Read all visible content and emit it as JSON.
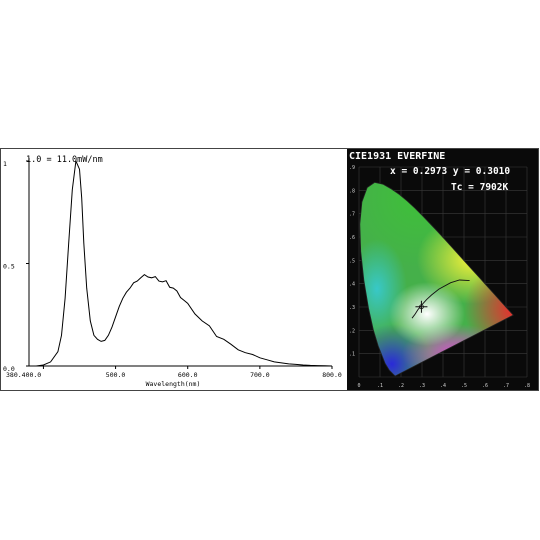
{
  "chart_data": [
    {
      "type": "line",
      "annotation": "1.0 = 11.0mW/nm",
      "xlabel": "Wavelength(nm)",
      "ylabel": "",
      "x_ticks": [
        "380.400.0",
        "500.0",
        "600.0",
        "700.0",
        "800.0"
      ],
      "y_ticks": [
        "1",
        "0.5",
        "0.0"
      ],
      "xlim": [
        380,
        800
      ],
      "ylim": [
        0,
        1
      ],
      "grid": false,
      "series": [
        {
          "x": [
            380,
            390,
            400,
            410,
            420,
            425,
            430,
            435,
            440,
            445,
            450,
            453,
            456,
            460,
            465,
            470,
            475,
            480,
            485,
            490,
            495,
            500,
            505,
            510,
            515,
            520,
            525,
            530,
            535,
            540,
            545,
            550,
            555,
            560,
            565,
            570,
            575,
            580,
            585,
            590,
            595,
            600,
            610,
            620,
            630,
            640,
            650,
            660,
            670,
            680,
            690,
            700,
            710,
            720,
            730,
            740,
            750,
            760,
            770,
            780,
            790,
            800
          ],
          "values": [
            0.0,
            0.0,
            0.005,
            0.02,
            0.07,
            0.15,
            0.33,
            0.6,
            0.86,
            1.0,
            0.96,
            0.82,
            0.6,
            0.38,
            0.22,
            0.15,
            0.13,
            0.12,
            0.125,
            0.15,
            0.19,
            0.24,
            0.29,
            0.33,
            0.36,
            0.38,
            0.4,
            0.42,
            0.43,
            0.44,
            0.44,
            0.43,
            0.43,
            0.42,
            0.41,
            0.41,
            0.39,
            0.38,
            0.36,
            0.34,
            0.32,
            0.3,
            0.26,
            0.22,
            0.19,
            0.15,
            0.13,
            0.1,
            0.085,
            0.065,
            0.05,
            0.04,
            0.03,
            0.02,
            0.015,
            0.01,
            0.008,
            0.005,
            0.003,
            0.002,
            0.001,
            0.0
          ]
        }
      ]
    },
    {
      "type": "scatter",
      "title": "CIE1931 EVERFINE",
      "readout_xy": "x = 0.2973 y = 0.3010",
      "readout_tc": "Tc = 7902K",
      "x_ticks": [
        "0",
        ".1",
        ".2",
        ".3",
        ".4",
        ".5",
        ".6",
        ".7",
        ".8"
      ],
      "y_ticks": [
        ".9",
        ".8",
        ".7",
        ".6",
        ".5",
        ".4",
        ".3",
        ".2",
        ".1"
      ],
      "xlim": [
        0,
        0.8
      ],
      "ylim": [
        0,
        0.9
      ],
      "series": [
        {
          "x": [
            0.2973
          ],
          "values": [
            0.301
          ]
        }
      ]
    }
  ],
  "colors": {
    "line": "#000000",
    "frame": "#444444",
    "cie_background": "#0a0a0a",
    "cie_text": "#ffffff"
  }
}
